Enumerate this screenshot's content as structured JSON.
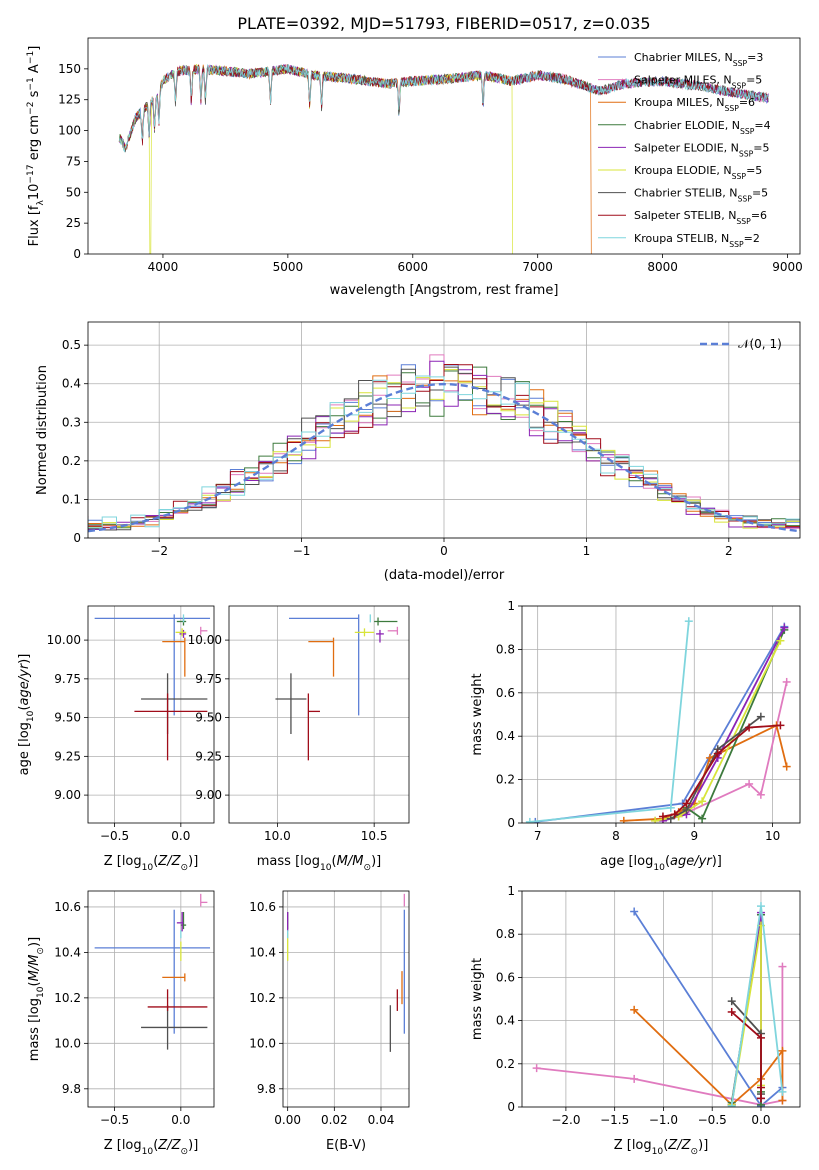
{
  "title": "PLATE=0392, MJD=51793, FIBERID=0517, z=0.035",
  "colors": {
    "Chabrier MILES": "#5b7fd6",
    "Salpeter MILES": "#e07bbf",
    "Kroupa MILES": "#e06d10",
    "Chabrier ELODIE": "#3d7a3d",
    "Salpeter ELODIE": "#8b24b5",
    "Kroupa ELODIE": "#d8e43a",
    "Chabrier STELIB": "#505050",
    "Salpeter STELIB": "#a00d1a",
    "Kroupa STELIB": "#7fd5dd",
    "gauss": "#5b7fd6"
  },
  "chart_data": [
    {
      "type": "line",
      "id": "spectrum",
      "title": "PLATE=0392, MJD=51793, FIBERID=0517, z=0.035",
      "xlabel": "wavelength [Angstrom, rest frame]",
      "ylabel": "Flux [f_λ 10^-17 erg cm^-2 s^-1 A^-1]",
      "xlim": [
        3400,
        9100
      ],
      "ylim": [
        0,
        175
      ],
      "xticks": [
        4000,
        5000,
        6000,
        7000,
        8000,
        9000
      ],
      "yticks": [
        0,
        25,
        50,
        75,
        100,
        125,
        150
      ],
      "grid": false,
      "legend": "upper right",
      "series": [
        {
          "name": "Chabrier MILES, N_SSP=3"
        },
        {
          "name": "Salpeter MILES, N_SSP=5"
        },
        {
          "name": "Kroupa MILES, N_SSP=6",
          "cutoff": 7430
        },
        {
          "name": "Chabrier ELODIE, N_SSP=4"
        },
        {
          "name": "Salpeter ELODIE, N_SSP=5"
        },
        {
          "name": "Kroupa ELODIE, N_SSP=5",
          "cutoff": 6800,
          "dip": 3900
        },
        {
          "name": "Chabrier STELIB, N_SSP=5"
        },
        {
          "name": "Salpeter STELIB, N_SSP=6"
        },
        {
          "name": "Kroupa STELIB, N_SSP=2"
        }
      ],
      "continuum": {
        "x": [
          3650,
          3700,
          3780,
          3850,
          3950,
          4000,
          4100,
          4300,
          4500,
          4700,
          5000,
          5200,
          5500,
          5800,
          6000,
          6300,
          6560,
          6800,
          7000,
          7200,
          7500,
          7700,
          8000,
          8300,
          8500,
          8850
        ],
        "y": [
          95,
          85,
          110,
          118,
          128,
          140,
          148,
          150,
          148,
          146,
          150,
          145,
          142,
          138,
          140,
          142,
          145,
          140,
          145,
          142,
          132,
          138,
          140,
          136,
          132,
          126
        ]
      }
    },
    {
      "type": "line",
      "id": "residuals",
      "xlabel": "(data-model)/error",
      "ylabel": "Normed distribution",
      "xlim": [
        -2.5,
        2.5
      ],
      "ylim": [
        0,
        0.56
      ],
      "xticks": [
        -2,
        -1,
        0,
        1,
        2
      ],
      "xticklabels": [
        "−2",
        "−1",
        "0",
        "1",
        "2"
      ],
      "yticks": [
        0.0,
        0.1,
        0.2,
        0.3,
        0.4,
        0.5
      ],
      "grid": true,
      "legend": "upper right",
      "legend_label": "𝒩(0, 1)",
      "gaussian": {
        "mean": 0,
        "sigma": 1
      }
    },
    {
      "type": "scatter",
      "id": "age_vs_Z",
      "xlabel": "Z [log10(Z/Z⊙)]",
      "ylabel": "age  [log10(age/yr)]",
      "xlim": [
        -0.7,
        0.25
      ],
      "ylim": [
        8.82,
        10.22
      ],
      "xticks": [
        -0.5,
        0.0
      ],
      "xticklabels": [
        "−0.5",
        "0.0"
      ],
      "yticks": [
        9.0,
        9.25,
        9.5,
        9.75,
        10.0
      ],
      "yticklabels": [
        "9.00",
        "9.25",
        "9.50",
        "9.75",
        "10.00"
      ],
      "grid": true,
      "crosses": [
        {
          "s": "Chabrier MILES",
          "x": -0.05,
          "xerr": [
            0.6,
            0.27
          ],
          "y": 10.14,
          "yerr": [
            0.6,
            0.0
          ]
        },
        {
          "s": "Salpeter MILES",
          "x": 0.15,
          "xerr": [
            0.0,
            0.05
          ],
          "y": 10.06,
          "yerr": [
            0.0,
            0.0
          ]
        },
        {
          "s": "Kroupa MILES",
          "x": 0.03,
          "xerr": [
            0.17,
            0.0
          ],
          "y": 9.99,
          "yerr": [
            0.2,
            0.0
          ]
        },
        {
          "s": "Chabrier ELODIE",
          "x": 0.02,
          "xerr": [
            0.05,
            0.02
          ],
          "y": 10.12,
          "yerr": [
            0.0,
            0.0
          ]
        },
        {
          "s": "Salpeter ELODIE",
          "x": 0.02,
          "xerr": [
            0.03,
            0.02
          ],
          "y": 10.04,
          "yerr": [
            0.0,
            0.0
          ]
        },
        {
          "s": "Kroupa ELODIE",
          "x": 0.01,
          "xerr": [
            0.05,
            0.03
          ],
          "y": 10.05,
          "yerr": [
            0.0,
            0.0
          ]
        },
        {
          "s": "Chabrier STELIB",
          "x": -0.1,
          "xerr": [
            0.2,
            0.3
          ],
          "y": 9.62,
          "yerr": [
            0.2,
            0.14
          ]
        },
        {
          "s": "Salpeter STELIB",
          "x": -0.1,
          "xerr": [
            0.25,
            0.3
          ],
          "y": 9.54,
          "yerr": [
            0.29,
            0.09
          ]
        },
        {
          "s": "Kroupa STELIB",
          "x": 0.02,
          "xerr": [
            0.0,
            0.0
          ],
          "y": 10.14,
          "yerr": [
            0.0,
            0.0
          ]
        }
      ]
    },
    {
      "type": "scatter",
      "id": "age_vs_mass",
      "xlabel": "mass [log10(M/M⊙)]",
      "ylabel": "",
      "xlim": [
        9.75,
        10.68
      ],
      "ylim": [
        8.82,
        10.22
      ],
      "xticks": [
        10.0,
        10.5
      ],
      "xticklabels": [
        "10.0",
        "10.5"
      ],
      "yticks": [
        9.0,
        9.25,
        9.5,
        9.75,
        10.0
      ],
      "yticklabels": [
        "9.00",
        "9.25",
        "9.50",
        "9.75",
        "10.00"
      ],
      "grid": true,
      "crosses": [
        {
          "s": "Chabrier MILES",
          "x": 10.42,
          "xerr": [
            0.36,
            0.0
          ],
          "y": 10.14,
          "yerr": [
            0.6,
            0.0
          ]
        },
        {
          "s": "Salpeter MILES",
          "x": 10.62,
          "xerr": [
            0.05,
            0.0
          ],
          "y": 10.06,
          "yerr": [
            0.0,
            0.0
          ]
        },
        {
          "s": "Kroupa MILES",
          "x": 10.29,
          "xerr": [
            0.13,
            0.0
          ],
          "y": 9.99,
          "yerr": [
            0.2,
            0.0
          ]
        },
        {
          "s": "Chabrier ELODIE",
          "x": 10.52,
          "xerr": [
            0.02,
            0.1
          ],
          "y": 10.12,
          "yerr": [
            0.0,
            0.0
          ]
        },
        {
          "s": "Salpeter ELODIE",
          "x": 10.53,
          "xerr": [
            0.02,
            0.02
          ],
          "y": 10.04,
          "yerr": [
            0.03,
            0.0
          ]
        },
        {
          "s": "Kroupa ELODIE",
          "x": 10.45,
          "xerr": [
            0.05,
            0.05
          ],
          "y": 10.05,
          "yerr": [
            0.0,
            0.0
          ]
        },
        {
          "s": "Chabrier STELIB",
          "x": 10.07,
          "xerr": [
            0.08,
            0.08
          ],
          "y": 9.62,
          "yerr": [
            0.2,
            0.14
          ]
        },
        {
          "s": "Salpeter STELIB",
          "x": 10.16,
          "xerr": [
            0.0,
            0.06
          ],
          "y": 9.54,
          "yerr": [
            0.29,
            0.09
          ]
        },
        {
          "s": "Kroupa STELIB",
          "x": 10.48,
          "xerr": [
            0.0,
            0.0
          ],
          "y": 10.14,
          "yerr": [
            0.0,
            0.0
          ]
        }
      ]
    },
    {
      "type": "line",
      "id": "weight_vs_age",
      "xlabel": "age  [log10(age/yr)]",
      "ylabel": "mass weight",
      "xlim": [
        6.8,
        10.35
      ],
      "ylim": [
        0,
        1.0
      ],
      "xticks": [
        7,
        8,
        9,
        10
      ],
      "yticks": [
        0.0,
        0.2,
        0.4,
        0.6,
        0.8,
        1.0
      ],
      "grid": true,
      "series": [
        {
          "s": "Chabrier MILES",
          "x": [
            6.97,
            8.85,
            10.15
          ],
          "y": [
            0.005,
            0.09,
            0.905
          ]
        },
        {
          "s": "Salpeter MILES",
          "x": [
            8.5,
            8.8,
            9.7,
            9.85,
            10.18
          ],
          "y": [
            0.01,
            0.03,
            0.18,
            0.13,
            0.65
          ]
        },
        {
          "s": "Kroupa MILES",
          "x": [
            8.1,
            8.6,
            8.8,
            9.0,
            9.2,
            10.05,
            10.18
          ],
          "y": [
            0.01,
            0.02,
            0.05,
            0.09,
            0.3,
            0.45,
            0.26
          ]
        },
        {
          "s": "Chabrier ELODIE",
          "x": [
            8.9,
            9.1,
            10.15
          ],
          "y": [
            0.07,
            0.02,
            0.89
          ]
        },
        {
          "s": "Salpeter ELODIE",
          "x": [
            8.6,
            8.9,
            9.3,
            10.15
          ],
          "y": [
            0.01,
            0.04,
            0.3,
            0.9
          ]
        },
        {
          "s": "Kroupa ELODIE",
          "x": [
            8.5,
            8.8,
            9.1,
            10.1
          ],
          "y": [
            0.01,
            0.03,
            0.1,
            0.84
          ]
        },
        {
          "s": "Chabrier STELIB",
          "x": [
            8.7,
            8.9,
            9.3,
            9.85
          ],
          "y": [
            0.02,
            0.06,
            0.34,
            0.49
          ]
        },
        {
          "s": "Salpeter STELIB",
          "x": [
            8.6,
            8.75,
            8.9,
            9.3,
            9.7,
            10.1
          ],
          "y": [
            0.03,
            0.04,
            0.09,
            0.32,
            0.44,
            0.45
          ]
        },
        {
          "s": "Kroupa STELIB",
          "x": [
            6.9,
            8.7,
            8.93
          ],
          "y": [
            0.005,
            0.07,
            0.93
          ]
        }
      ]
    },
    {
      "type": "scatter",
      "id": "mass_vs_Z",
      "xlabel": "Z [log10(Z/Z⊙)]",
      "ylabel": "mass [log10(M/M⊙)]",
      "xlim": [
        -0.7,
        0.25
      ],
      "ylim": [
        9.72,
        10.67
      ],
      "xticks": [
        -0.5,
        0.0
      ],
      "xticklabels": [
        "−0.5",
        "0.0"
      ],
      "yticks": [
        9.8,
        10.0,
        10.2,
        10.4,
        10.6
      ],
      "yticklabels": [
        "9.8",
        "10.0",
        "10.2",
        "10.4",
        "10.6"
      ],
      "grid": true,
      "crosses": [
        {
          "s": "Chabrier MILES",
          "x": -0.05,
          "xerr": [
            0.6,
            0.27
          ],
          "y": 10.42,
          "yerr": [
            0.36,
            0.15
          ]
        },
        {
          "s": "Salpeter MILES",
          "x": 0.15,
          "xerr": [
            0.0,
            0.05
          ],
          "y": 10.62,
          "yerr": [
            0.0,
            0.02
          ]
        },
        {
          "s": "Kroupa MILES",
          "x": 0.03,
          "xerr": [
            0.17,
            0.0
          ],
          "y": 10.29,
          "yerr": [
            0.0,
            0.0
          ]
        },
        {
          "s": "Chabrier ELODIE",
          "x": 0.02,
          "xerr": [
            0.02,
            0.02
          ],
          "y": 10.52,
          "yerr": [
            0.0,
            0.04
          ]
        },
        {
          "s": "Salpeter ELODIE",
          "x": 0.01,
          "xerr": [
            0.04,
            0.01
          ],
          "y": 10.53,
          "yerr": [
            0.02,
            0.03
          ]
        },
        {
          "s": "Kroupa ELODIE",
          "x": 0.0,
          "xerr": [
            0.0,
            0.0
          ],
          "y": 10.4,
          "yerr": [
            0.02,
            0.03
          ]
        },
        {
          "s": "Chabrier STELIB",
          "x": -0.1,
          "xerr": [
            0.2,
            0.3
          ],
          "y": 10.07,
          "yerr": [
            0.08,
            0.08
          ]
        },
        {
          "s": "Salpeter STELIB",
          "x": -0.1,
          "xerr": [
            0.15,
            0.3
          ],
          "y": 10.16,
          "yerr": [
            0.0,
            0.06
          ]
        },
        {
          "s": "Kroupa STELIB",
          "x": 0.0,
          "xerr": [
            0.0,
            0.0
          ],
          "y": 10.48,
          "yerr": [
            0.0,
            0.0
          ]
        }
      ]
    },
    {
      "type": "scatter",
      "id": "mass_vs_EBV",
      "xlabel": "E(B-V)",
      "ylabel": "",
      "xlim": [
        -0.002,
        0.052
      ],
      "ylim": [
        9.72,
        10.67
      ],
      "xticks": [
        0.0,
        0.02,
        0.04
      ],
      "xticklabels": [
        "0.00",
        "0.02",
        "0.04"
      ],
      "yticks": [
        9.8,
        10.0,
        10.2,
        10.4,
        10.6
      ],
      "yticklabels": [
        "9.8",
        "10.0",
        "10.2",
        "10.4",
        "10.6"
      ],
      "grid": true,
      "crosses": [
        {
          "s": "Chabrier MILES",
          "x": 0.05,
          "y": 10.42,
          "yerr": [
            0.36,
            0.15
          ]
        },
        {
          "s": "Salpeter MILES",
          "x": 0.05,
          "y": 10.62,
          "yerr": [
            0.0,
            0.02
          ]
        },
        {
          "s": "Kroupa MILES",
          "x": 0.049,
          "y": 10.25,
          "yerr": [
            0.06,
            0.05
          ]
        },
        {
          "s": "Chabrier ELODIE",
          "x": 0.0,
          "y": 10.52,
          "yerr": [
            0.0,
            0.04
          ]
        },
        {
          "s": "Salpeter ELODIE",
          "x": 0.0,
          "y": 10.53,
          "yerr": [
            0.02,
            0.03
          ]
        },
        {
          "s": "Kroupa ELODIE",
          "x": 0.0,
          "y": 10.4,
          "yerr": [
            0.02,
            0.07
          ]
        },
        {
          "s": "Chabrier STELIB",
          "x": 0.044,
          "y": 10.07,
          "yerr": [
            0.09,
            0.08
          ]
        },
        {
          "s": "Salpeter STELIB",
          "x": 0.047,
          "y": 10.16,
          "yerr": [
            0.0,
            0.06
          ]
        },
        {
          "s": "Kroupa STELIB",
          "x": 0.0,
          "y": 10.48,
          "yerr": [
            0.0,
            0.0
          ]
        }
      ]
    },
    {
      "type": "line",
      "id": "weight_vs_Z",
      "xlabel": "Z [log10(Z/Z⊙)]",
      "ylabel": "mass weight",
      "xlim": [
        -2.45,
        0.4
      ],
      "ylim": [
        0,
        1.0
      ],
      "xticks": [
        -2.0,
        -1.5,
        -1.0,
        -0.5,
        0.0
      ],
      "xticklabels": [
        "−2.0",
        "−1.5",
        "−1.0",
        "−0.5",
        "0.0"
      ],
      "yticks": [
        0.0,
        0.2,
        0.4,
        0.6,
        0.8,
        1.0
      ],
      "grid": true,
      "series": [
        {
          "s": "Chabrier MILES",
          "x": [
            -1.3,
            0.0,
            0.22
          ],
          "y": [
            0.905,
            0.005,
            0.09
          ]
        },
        {
          "s": "Salpeter MILES",
          "x": [
            -2.3,
            -1.3,
            0.0,
            0.22,
            0.22
          ],
          "y": [
            0.18,
            0.13,
            0.01,
            0.03,
            0.65
          ]
        },
        {
          "s": "Kroupa MILES",
          "x": [
            -1.3,
            -0.3,
            0.0,
            0.22,
            0.22
          ],
          "y": [
            0.45,
            0.01,
            0.13,
            0.26,
            0.03
          ]
        },
        {
          "s": "Chabrier ELODIE",
          "x": [
            -0.3,
            0.0,
            0.0,
            0.0
          ],
          "y": [
            0.02,
            0.89,
            0.07,
            0.01
          ]
        },
        {
          "s": "Salpeter ELODIE",
          "x": [
            -0.3,
            0.0,
            0.0
          ],
          "y": [
            0.01,
            0.9,
            0.04
          ]
        },
        {
          "s": "Kroupa ELODIE",
          "x": [
            -0.3,
            0.0,
            0.0
          ],
          "y": [
            0.01,
            0.84,
            0.1
          ]
        },
        {
          "s": "Chabrier STELIB",
          "x": [
            -0.3,
            0.0,
            0.0
          ],
          "y": [
            0.49,
            0.34,
            0.06
          ]
        },
        {
          "s": "Salpeter STELIB",
          "x": [
            -0.3,
            0.0,
            0.0,
            0.0
          ],
          "y": [
            0.44,
            0.32,
            0.09,
            0.04
          ]
        },
        {
          "s": "Kroupa STELIB",
          "x": [
            -0.3,
            0.0,
            0.22
          ],
          "y": [
            0.005,
            0.93,
            0.07
          ]
        }
      ]
    }
  ]
}
